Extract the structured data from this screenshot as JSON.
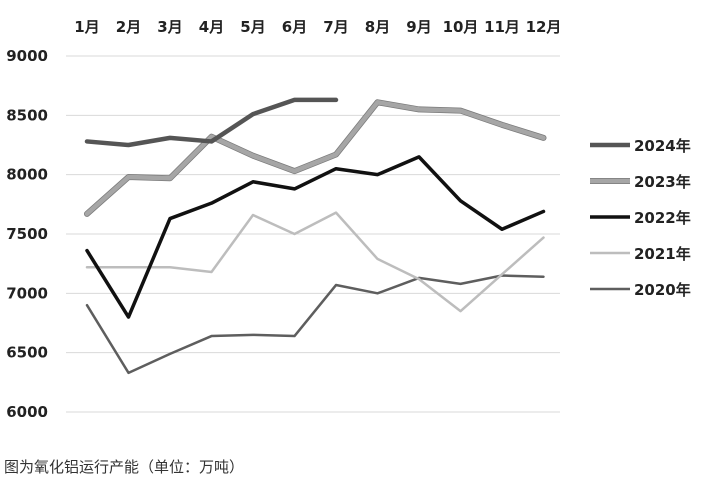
{
  "caption": "图为氧化铝运行产能（单位：万吨）",
  "chart_data": {
    "type": "line",
    "title": "",
    "xlabel": "",
    "ylabel": "",
    "categories": [
      "1月",
      "2月",
      "3月",
      "4月",
      "5月",
      "6月",
      "7月",
      "8月",
      "9月",
      "10月",
      "11月",
      "12月"
    ],
    "ylim": [
      6000,
      9000
    ],
    "yticks": [
      6000,
      6500,
      7000,
      7500,
      8000,
      8500,
      9000
    ],
    "grid": "horizontal",
    "legend_position": "right",
    "x_axis_position": "top",
    "series": [
      {
        "name": "2024年",
        "color": "#555555",
        "width": 4.5,
        "values": [
          8280,
          8250,
          8310,
          8280,
          8510,
          8630,
          8630,
          null,
          null,
          null,
          null,
          null
        ]
      },
      {
        "name": "2023年",
        "color": "#a6a6a6",
        "width": 4.5,
        "outline": "#7a7a7a",
        "values": [
          7670,
          7980,
          7970,
          8320,
          8160,
          8030,
          8170,
          8610,
          8550,
          8540,
          8420,
          8310
        ]
      },
      {
        "name": "2022年",
        "color": "#111111",
        "width": 3.5,
        "values": [
          7360,
          6800,
          7630,
          7760,
          7940,
          7880,
          8050,
          8000,
          8150,
          7780,
          7540,
          7690
        ]
      },
      {
        "name": "2021年",
        "color": "#bdbdbd",
        "width": 2.5,
        "values": [
          7220,
          7220,
          7220,
          7180,
          7660,
          7500,
          7680,
          7290,
          7120,
          6850,
          7160,
          7470
        ]
      },
      {
        "name": "2020年",
        "color": "#5e5e5e",
        "width": 2.5,
        "values": [
          6900,
          6330,
          6490,
          6640,
          6650,
          6640,
          7070,
          7000,
          7130,
          7080,
          7150,
          7140
        ]
      }
    ]
  }
}
